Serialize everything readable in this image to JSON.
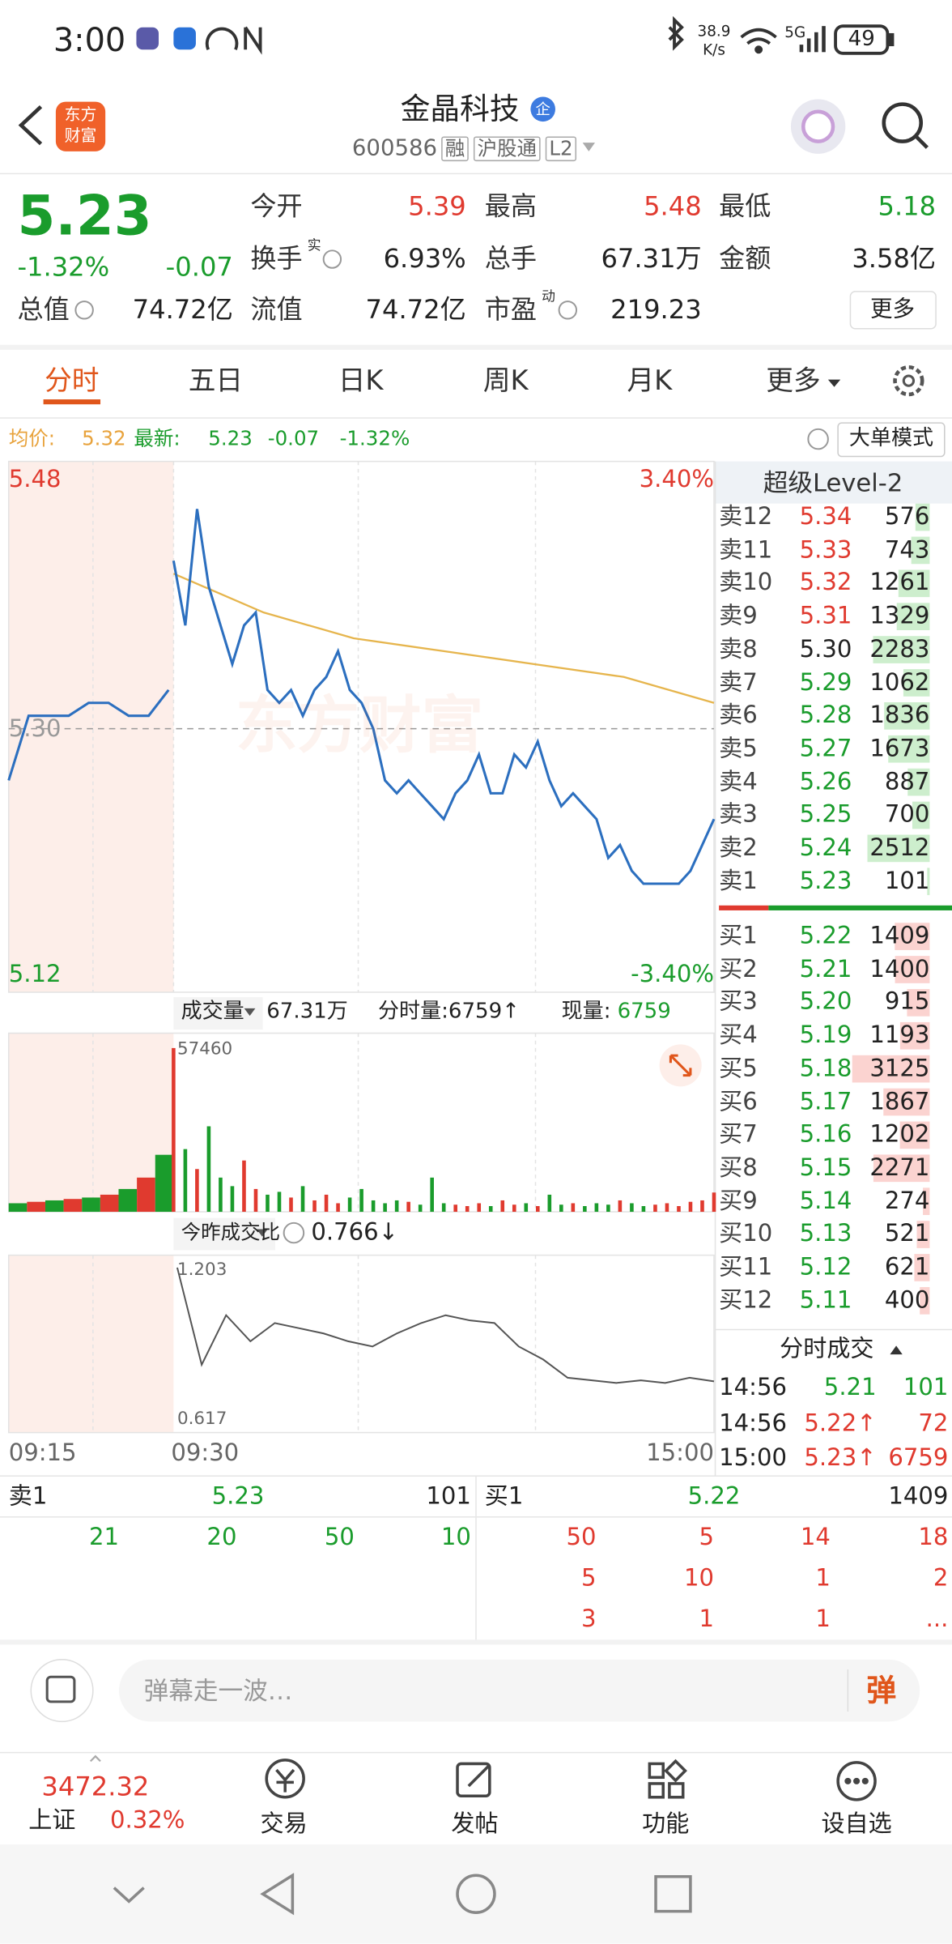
{
  "status_bar": {
    "time": "3:00",
    "speed": "38.9",
    "speed_unit": "K/s",
    "network": "5G",
    "battery": "49"
  },
  "header": {
    "logo": [
      "东方",
      "财富"
    ],
    "name": "金晶科技",
    "badge": "企",
    "code": "600586",
    "tags": [
      "融",
      "沪股通",
      "L2"
    ]
  },
  "quote": {
    "price": "5.23",
    "change_pct": "-1.32%",
    "change": "-0.07",
    "fields": [
      {
        "label": "今开",
        "value": "5.39"
      },
      {
        "label": "最高",
        "value": "5.48"
      },
      {
        "label": "最低",
        "value": "5.18"
      },
      {
        "label": "换手",
        "sup": "实",
        "value": "6.93%"
      },
      {
        "label": "总手",
        "value": "67.31万"
      },
      {
        "label": "金额",
        "value": "3.58亿"
      },
      {
        "label": "总值",
        "value": "74.72亿"
      },
      {
        "label": "流值",
        "value": "74.72亿"
      },
      {
        "label": "市盈",
        "sup": "动",
        "value": "219.23"
      }
    ],
    "more": "更多"
  },
  "tabs": [
    "分时",
    "五日",
    "日K",
    "周K",
    "月K",
    "更多"
  ],
  "info": {
    "avg_label": "均价:",
    "avg": "5.32",
    "last_label": "最新:",
    "last": "5.23",
    "change": "-0.07",
    "change_pct": "-1.32%",
    "mode": "大单模式"
  },
  "intraday": {
    "watermark": "东方财富",
    "ylim": [
      5.12,
      5.48
    ],
    "ref": {
      "value": 5.3,
      "label": "5.30"
    },
    "pct_top": "3.40%",
    "pct_bottom": "-3.40%",
    "price_color": "#2c6fbf",
    "avg_color": "#e6b54d",
    "auction_prices": [
      5.26,
      5.31,
      5.31,
      5.31,
      5.32,
      5.32,
      5.31,
      5.31,
      5.33
    ],
    "prices": [
      5.43,
      5.38,
      5.47,
      5.41,
      5.38,
      5.35,
      5.38,
      5.39,
      5.33,
      5.32,
      5.33,
      5.31,
      5.33,
      5.34,
      5.36,
      5.33,
      5.32,
      5.3,
      5.26,
      5.25,
      5.26,
      5.25,
      5.24,
      5.23,
      5.25,
      5.26,
      5.28,
      5.25,
      5.25,
      5.28,
      5.27,
      5.29,
      5.26,
      5.24,
      5.25,
      5.24,
      5.23,
      5.2,
      5.21,
      5.19,
      5.18,
      5.18,
      5.18,
      5.18,
      5.19,
      5.21,
      5.23
    ],
    "avg_prices": [
      5.42,
      5.39,
      5.37,
      5.36,
      5.35,
      5.34,
      5.32
    ]
  },
  "volume": {
    "label": "成交量",
    "total": "67.31万",
    "tick_label": "分时量:6759↑",
    "now_label": "现量:",
    "now": "6759",
    "ylim": [
      0,
      57460
    ],
    "auction_volumes": [
      3000,
      3500,
      4000,
      4500,
      5000,
      6000,
      8000,
      12000,
      20000
    ],
    "volumes": [
      57460,
      22000,
      15000,
      30000,
      12000,
      9000,
      18000,
      8000,
      6000,
      7000,
      5000,
      9000,
      4000,
      6000,
      3000,
      5000,
      8000,
      4000,
      3000,
      4000,
      3500,
      2500,
      12000,
      3000,
      2500,
      2000,
      3000,
      2000,
      4000,
      2500,
      3000,
      2000,
      6000,
      2500,
      3000,
      2000,
      3000,
      2500,
      4000,
      3000,
      2000,
      2500,
      3000,
      2000,
      3500,
      4000,
      6759
    ]
  },
  "ratio": {
    "label": "今昨成交比",
    "value": "0.766↓",
    "ylim": [
      0.617,
      1.203
    ],
    "values": [
      1.203,
      0.83,
      1.02,
      0.92,
      0.99,
      0.97,
      0.95,
      0.92,
      0.9,
      0.95,
      0.99,
      1.02,
      1.0,
      0.99,
      0.9,
      0.85,
      0.78,
      0.77,
      0.76,
      0.77,
      0.76,
      0.78,
      0.766
    ]
  },
  "time_axis": [
    "09:15",
    "09:30",
    "15:00"
  ],
  "level2": {
    "title": "超级Level-2",
    "asks": [
      {
        "label": "卖12",
        "price": "5.34",
        "volume": 576
      },
      {
        "label": "卖11",
        "price": "5.33",
        "volume": 743
      },
      {
        "label": "卖10",
        "price": "5.32",
        "volume": 1261
      },
      {
        "label": "卖9",
        "price": "5.31",
        "volume": 1329
      },
      {
        "label": "卖8",
        "price": "5.30",
        "volume": 2283
      },
      {
        "label": "卖7",
        "price": "5.29",
        "volume": 1062
      },
      {
        "label": "卖6",
        "price": "5.28",
        "volume": 1836
      },
      {
        "label": "卖5",
        "price": "5.27",
        "volume": 1673
      },
      {
        "label": "卖4",
        "price": "5.26",
        "volume": 887
      },
      {
        "label": "卖3",
        "price": "5.25",
        "volume": 700
      },
      {
        "label": "卖2",
        "price": "5.24",
        "volume": 2512
      },
      {
        "label": "卖1",
        "price": "5.23",
        "volume": 101
      }
    ],
    "bids": [
      {
        "label": "买1",
        "price": "5.22",
        "volume": 1409
      },
      {
        "label": "买2",
        "price": "5.21",
        "volume": 1400
      },
      {
        "label": "买3",
        "price": "5.20",
        "volume": 915
      },
      {
        "label": "买4",
        "price": "5.19",
        "volume": 1193
      },
      {
        "label": "买5",
        "price": "5.18",
        "volume": 3125
      },
      {
        "label": "买6",
        "price": "5.17",
        "volume": 1867
      },
      {
        "label": "买7",
        "price": "5.16",
        "volume": 1202
      },
      {
        "label": "买8",
        "price": "5.15",
        "volume": 2271
      },
      {
        "label": "买9",
        "price": "5.14",
        "volume": 274
      },
      {
        "label": "买10",
        "price": "5.13",
        "volume": 521
      },
      {
        "label": "买11",
        "price": "5.12",
        "volume": 621
      },
      {
        "label": "买12",
        "price": "5.11",
        "volume": 400
      }
    ]
  },
  "trades": {
    "title": "分时成交",
    "rows": [
      [
        "14:56",
        "5.21",
        "101"
      ],
      [
        "14:56",
        "5.22↑",
        "72"
      ],
      [
        "15:00",
        "5.23↑",
        "6759"
      ]
    ]
  },
  "queue": {
    "ask": {
      "label": "卖1",
      "price": "5.23",
      "volume": "101",
      "orders": [
        "21",
        "20",
        "50",
        "10"
      ]
    },
    "bid": {
      "label": "买1",
      "price": "5.22",
      "volume": "1409",
      "orders": [
        "50",
        "5",
        "14",
        "18",
        "5",
        "10",
        "1",
        "2",
        "3",
        "1",
        "1",
        "..."
      ]
    }
  },
  "comment": {
    "placeholder": "弹幕走一波…",
    "button": "弹"
  },
  "nav": {
    "index_value": "3472.32",
    "index_name": "上证",
    "index_change": "0.32%",
    "items": [
      "交易",
      "发帖",
      "功能",
      "设自选"
    ]
  }
}
